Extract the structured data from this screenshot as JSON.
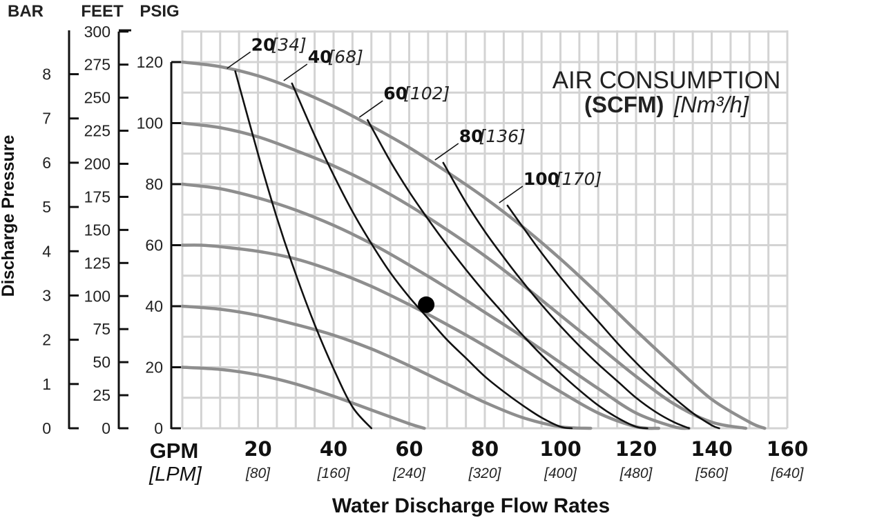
{
  "chart_data": {
    "type": "line",
    "title": "",
    "xlabel": "Water Discharge Flow Rates",
    "ylabel": "Discharge Pressure",
    "x_units": {
      "primary": "GPM",
      "secondary": "[LPM]"
    },
    "xlim": [
      0,
      160
    ],
    "x_ticks": [
      {
        "value": 20,
        "label": "20",
        "sub": "[80]"
      },
      {
        "value": 40,
        "label": "40",
        "sub": "[160]"
      },
      {
        "value": 60,
        "label": "60",
        "sub": "[240]"
      },
      {
        "value": 80,
        "label": "80",
        "sub": "[320]"
      },
      {
        "value": 100,
        "label": "100",
        "sub": "[400]"
      },
      {
        "value": 120,
        "label": "120",
        "sub": "[480]"
      },
      {
        "value": 140,
        "label": "140",
        "sub": "[560]"
      },
      {
        "value": 160,
        "label": "160",
        "sub": "[640]"
      }
    ],
    "ylim": [
      0,
      130
    ],
    "y_axes": {
      "bar": {
        "header": "BAR",
        "ticks": [
          0,
          1,
          2,
          3,
          4,
          5,
          6,
          7,
          8
        ]
      },
      "feet": {
        "header": "FEET",
        "ticks": [
          0,
          25,
          50,
          75,
          100,
          125,
          150,
          175,
          200,
          225,
          250,
          275,
          300
        ]
      },
      "psig": {
        "header": "PSIG",
        "ticks": [
          0,
          20,
          40,
          60,
          80,
          100,
          120
        ]
      }
    },
    "grid": true,
    "legend": {
      "placement": "top-right",
      "line1": "AIR CONSUMPTION",
      "line2_bold": "(SCFM)",
      "line2_italic": "[Nm³/h]"
    },
    "series": [
      {
        "kind": "performance",
        "x": [
          0,
          10,
          20,
          30,
          40,
          50,
          60,
          70,
          80,
          90,
          100,
          110,
          120,
          130,
          140,
          150,
          154
        ],
        "y": [
          120,
          118.5,
          115.5,
          111,
          105.5,
          99,
          92,
          84,
          75.5,
          66,
          55.5,
          44,
          32,
          20.5,
          9.5,
          2,
          0
        ]
      },
      {
        "kind": "performance",
        "x": [
          0,
          10,
          20,
          30,
          40,
          50,
          60,
          70,
          80,
          90,
          100,
          110,
          120,
          130,
          140,
          149
        ],
        "y": [
          100,
          98.5,
          95.5,
          91,
          86,
          80,
          73,
          65,
          56.5,
          47,
          37,
          27,
          17,
          8,
          2,
          0
        ]
      },
      {
        "kind": "performance",
        "x": [
          0,
          10,
          20,
          30,
          40,
          50,
          60,
          70,
          80,
          90,
          100,
          110,
          120,
          130,
          134
        ],
        "y": [
          80,
          78.5,
          75.5,
          71.5,
          66.5,
          60.5,
          53.5,
          46,
          38,
          30,
          21.5,
          13,
          5,
          0.5,
          0
        ]
      },
      {
        "kind": "performance",
        "x": [
          0,
          5,
          10,
          20,
          30,
          40,
          50,
          60,
          70,
          80,
          90,
          100,
          110,
          120,
          126
        ],
        "y": [
          60,
          60,
          59.5,
          58,
          55.5,
          51.5,
          46.5,
          40.5,
          34,
          27,
          19.5,
          12,
          5,
          0.5,
          0
        ]
      },
      {
        "kind": "performance",
        "x": [
          0,
          10,
          20,
          30,
          40,
          50,
          60,
          70,
          80,
          90,
          100,
          108
        ],
        "y": [
          40,
          39,
          37,
          34,
          30.5,
          26,
          20.5,
          14.5,
          8.5,
          3.5,
          0.5,
          0
        ]
      },
      {
        "kind": "performance",
        "x": [
          0,
          10,
          20,
          30,
          40,
          50,
          60,
          64
        ],
        "y": [
          20,
          19.3,
          17.5,
          14.5,
          10.5,
          6,
          1.5,
          0
        ]
      },
      {
        "kind": "air",
        "name": "20",
        "sub": "[34]",
        "x": [
          14,
          20,
          25,
          30,
          35,
          40,
          45,
          50
        ],
        "y": [
          117,
          90,
          69,
          50.5,
          34,
          19.5,
          7,
          0
        ]
      },
      {
        "kind": "air",
        "name": "40",
        "sub": "[68]",
        "x": [
          29,
          35,
          40,
          45,
          50,
          55,
          60,
          65,
          70,
          75,
          80,
          85,
          90,
          95,
          100,
          103
        ],
        "y": [
          113,
          96,
          83,
          71,
          60.5,
          51,
          43,
          36,
          29,
          23,
          17,
          12,
          7.5,
          3.5,
          0.5,
          0
        ]
      },
      {
        "kind": "air",
        "name": "60",
        "sub": "[102]",
        "x": [
          49,
          55,
          60,
          65,
          70,
          75,
          80,
          85,
          90,
          95,
          100,
          105,
          110,
          115,
          120,
          123
        ],
        "y": [
          101,
          87.5,
          77.5,
          68.5,
          60,
          52,
          44.5,
          37.5,
          30.5,
          24,
          18,
          12.5,
          7.5,
          3.5,
          0.5,
          0
        ]
      },
      {
        "kind": "air",
        "name": "80",
        "sub": "[136]",
        "x": [
          69,
          75,
          80,
          85,
          90,
          95,
          100,
          105,
          110,
          115,
          120,
          125,
          130,
          134
        ],
        "y": [
          87,
          74,
          64.5,
          56,
          48,
          40.5,
          33.5,
          27,
          21,
          15.5,
          10,
          5.5,
          2,
          0
        ]
      },
      {
        "kind": "air",
        "name": "100",
        "sub": "[170]",
        "x": [
          86,
          90,
          95,
          100,
          105,
          110,
          115,
          120,
          125,
          130,
          135,
          140,
          142
        ],
        "y": [
          73,
          66,
          57.5,
          49.5,
          42,
          35,
          28,
          21.5,
          15.5,
          10,
          5,
          1,
          0
        ]
      }
    ],
    "annotations": [
      {
        "type": "marker",
        "shape": "filled-circle",
        "x": 64.5,
        "y": 40.5
      }
    ]
  }
}
